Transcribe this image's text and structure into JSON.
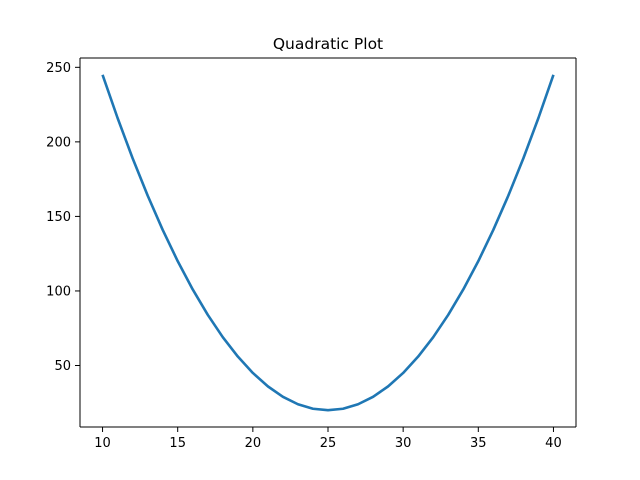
{
  "chart_data": {
    "type": "line",
    "title": "Quadratic Plot",
    "xlabel": "",
    "ylabel": "",
    "xlim": [
      8.5,
      41.5
    ],
    "ylim": [
      8.75,
      256.25
    ],
    "x_ticks": [
      10,
      15,
      20,
      25,
      30,
      35,
      40
    ],
    "y_ticks": [
      50,
      100,
      150,
      200,
      250
    ],
    "grid": false,
    "legend": "none",
    "series": [
      {
        "color": "#1f77b4",
        "x": [
          10,
          11,
          12,
          13,
          14,
          15,
          16,
          17,
          18,
          19,
          20,
          21,
          22,
          23,
          24,
          25,
          26,
          27,
          28,
          29,
          30,
          31,
          32,
          33,
          34,
          35,
          36,
          37,
          38,
          39,
          40
        ],
        "y": [
          245,
          216,
          189,
          164,
          141,
          120,
          101,
          84,
          69,
          56,
          45,
          36,
          29,
          24,
          21,
          20,
          21,
          24,
          29,
          36,
          45,
          56,
          69,
          84,
          101,
          120,
          141,
          164,
          189,
          216,
          245
        ]
      }
    ]
  }
}
